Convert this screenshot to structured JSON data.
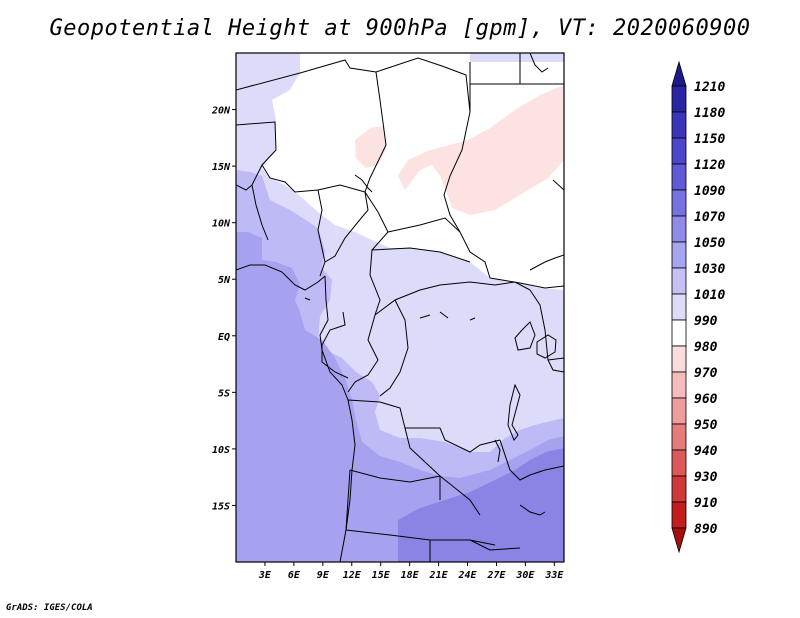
{
  "title": "Geopotential Height at 900hPa [gpm], VT: 2020060900",
  "credit": "GrADS: IGES/COLA",
  "map": {
    "lon_range": [
      0,
      34
    ],
    "lat_range": [
      -20,
      25
    ],
    "lat_ticks": [
      {
        "value": 20,
        "label": "20N"
      },
      {
        "value": 15,
        "label": "15N"
      },
      {
        "value": 10,
        "label": "10N"
      },
      {
        "value": 5,
        "label": "5N"
      },
      {
        "value": 0,
        "label": "EQ"
      },
      {
        "value": -5,
        "label": "5S"
      },
      {
        "value": -10,
        "label": "10S"
      },
      {
        "value": -15,
        "label": "15S"
      }
    ],
    "lon_ticks": [
      {
        "value": 3,
        "label": "3E"
      },
      {
        "value": 6,
        "label": "6E"
      },
      {
        "value": 9,
        "label": "9E"
      },
      {
        "value": 12,
        "label": "12E"
      },
      {
        "value": 15,
        "label": "15E"
      },
      {
        "value": 18,
        "label": "18E"
      },
      {
        "value": 21,
        "label": "21E"
      },
      {
        "value": 24,
        "label": "24E"
      },
      {
        "value": 27,
        "label": "27E"
      },
      {
        "value": 30,
        "label": "30E"
      },
      {
        "value": 33,
        "label": "33E"
      }
    ]
  },
  "colorbar": {
    "labels": [
      "1210",
      "1180",
      "1150",
      "1120",
      "1090",
      "1070",
      "1050",
      "1030",
      "1010",
      "990",
      "980",
      "970",
      "960",
      "950",
      "940",
      "930",
      "910",
      "890"
    ],
    "colors": [
      "#1d1a8c",
      "#2a25a5",
      "#3a35bb",
      "#4b46cc",
      "#5f5ad8",
      "#7772e2",
      "#8f8be9",
      "#a8a5f0",
      "#c3c1f6",
      "#dcdcfa",
      "#ffffff",
      "#fbdcdc",
      "#f5bcbc",
      "#ee9d9d",
      "#e67b7b",
      "#dd5959",
      "#d23838",
      "#c41d1d",
      "#a81010"
    ]
  },
  "field_colors": {
    "deep_blue": "#8a84e4",
    "mid_blue": "#a6a2f0",
    "light_blue": "#bdbaf5",
    "pale_blue": "#dcdcfa",
    "white": "#ffffff",
    "pink": "#fde2e2"
  }
}
